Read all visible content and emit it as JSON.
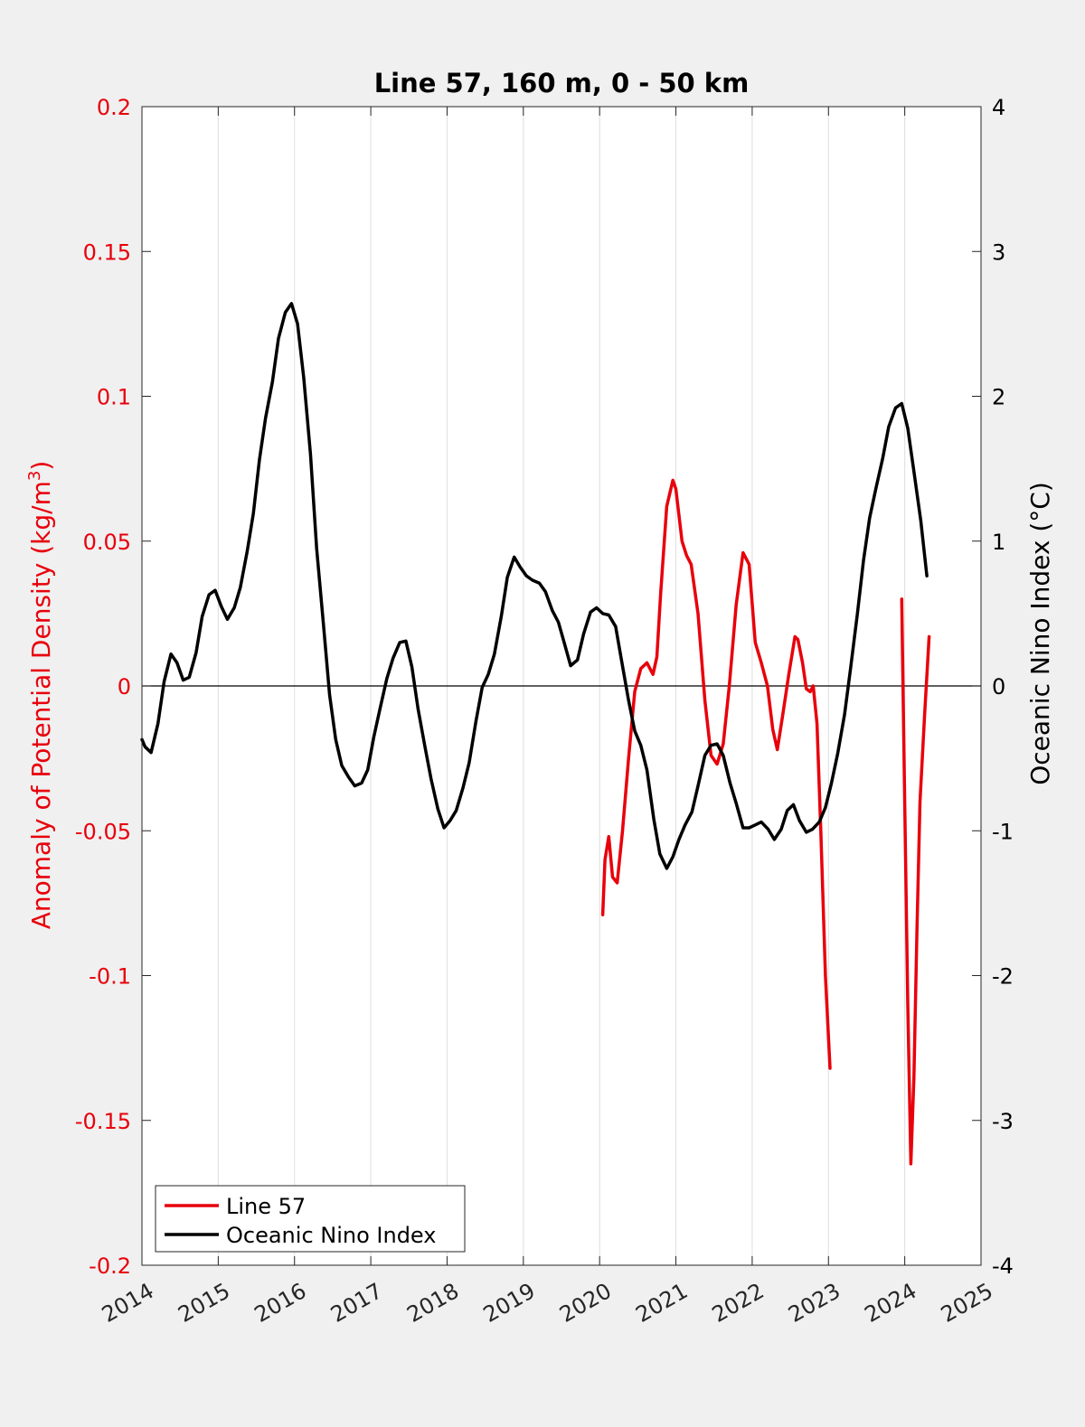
{
  "chart_data": {
    "type": "line",
    "title": "Line 57, 160 m, 0 - 50 km",
    "xlim": [
      2014,
      2025
    ],
    "x_ticks": [
      2014,
      2015,
      2016,
      2017,
      2018,
      2019,
      2020,
      2021,
      2022,
      2023,
      2024,
      2025
    ],
    "x_tick_labels": [
      "2014",
      "2015",
      "2016",
      "2017",
      "2018",
      "2019",
      "2020",
      "2021",
      "2022",
      "2023",
      "2024",
      "2025"
    ],
    "y_left": {
      "label_main": "Anomaly of Potential Density (kg/m",
      "label_sup": "3",
      "label_end": ")",
      "ylim": [
        -0.2,
        0.2
      ],
      "ticks": [
        -0.2,
        -0.15,
        -0.1,
        -0.05,
        0,
        0.05,
        0.1,
        0.15,
        0.2
      ],
      "tick_labels": [
        "-0.2",
        "-0.15",
        "-0.1",
        "-0.05",
        "0",
        "0.05",
        "0.1",
        "0.15",
        "0.2"
      ],
      "color": "#e8000b"
    },
    "y_right": {
      "label": "Oceanic Nino Index (°C)",
      "ylim": [
        -4,
        4
      ],
      "ticks": [
        -4,
        -3,
        -2,
        -1,
        0,
        1,
        2,
        3,
        4
      ],
      "tick_labels": [
        "-4",
        "-3",
        "-2",
        "-1",
        "0",
        "1",
        "2",
        "3",
        "4"
      ],
      "color": "#000000"
    },
    "grid": "vertical",
    "legend_position": "bottom-left",
    "series": [
      {
        "name": "Line 57",
        "axis": "left",
        "color": "#e8000b",
        "segments": [
          {
            "x": [
              2020.04,
              2020.07,
              2020.12,
              2020.17,
              2020.23,
              2020.3,
              2020.38,
              2020.46,
              2020.54,
              2020.62,
              2020.7,
              2020.75,
              2020.8,
              2020.88,
              2020.96,
              2021.0,
              2021.08,
              2021.14,
              2021.2,
              2021.29,
              2021.38,
              2021.46,
              2021.54,
              2021.62,
              2021.7,
              2021.79,
              2021.88,
              2021.96,
              2022.04,
              2022.12,
              2022.2,
              2022.27,
              2022.33,
              2022.4,
              2022.48,
              2022.56,
              2022.6,
              2022.66,
              2022.71,
              2022.76,
              2022.8,
              2022.85,
              2022.9,
              2022.96,
              2023.02
            ],
            "y": [
              -0.079,
              -0.06,
              -0.052,
              -0.066,
              -0.068,
              -0.05,
              -0.025,
              -0.002,
              0.006,
              0.008,
              0.004,
              0.01,
              0.032,
              0.062,
              0.071,
              0.068,
              0.05,
              0.045,
              0.042,
              0.025,
              -0.005,
              -0.024,
              -0.027,
              -0.02,
              0.0,
              0.028,
              0.046,
              0.042,
              0.015,
              0.008,
              0.0,
              -0.015,
              -0.022,
              -0.01,
              0.004,
              0.017,
              0.016,
              0.008,
              -0.001,
              -0.002,
              0.0,
              -0.013,
              -0.05,
              -0.1,
              -0.132
            ]
          },
          {
            "x": [
              2023.96,
              2024.0,
              2024.04,
              2024.08,
              2024.12,
              2024.16,
              2024.2,
              2024.26,
              2024.32
            ],
            "y": [
              0.03,
              -0.04,
              -0.11,
              -0.165,
              -0.135,
              -0.085,
              -0.04,
              -0.01,
              0.017
            ]
          }
        ]
      },
      {
        "name": "Oceanic Nino Index",
        "axis": "right",
        "color": "#000000",
        "x": [
          2014.0,
          2014.04,
          2014.12,
          2014.21,
          2014.29,
          2014.38,
          2014.46,
          2014.54,
          2014.62,
          2014.71,
          2014.79,
          2014.88,
          2014.96,
          2015.04,
          2015.12,
          2015.21,
          2015.29,
          2015.38,
          2015.46,
          2015.54,
          2015.62,
          2015.71,
          2015.79,
          2015.88,
          2015.96,
          2016.04,
          2016.12,
          2016.21,
          2016.29,
          2016.38,
          2016.46,
          2016.54,
          2016.62,
          2016.71,
          2016.79,
          2016.88,
          2016.96,
          2017.04,
          2017.12,
          2017.21,
          2017.29,
          2017.38,
          2017.46,
          2017.54,
          2017.62,
          2017.71,
          2017.79,
          2017.88,
          2017.96,
          2018.04,
          2018.12,
          2018.21,
          2018.29,
          2018.38,
          2018.46,
          2018.54,
          2018.62,
          2018.71,
          2018.79,
          2018.88,
          2018.96,
          2019.04,
          2019.12,
          2019.21,
          2019.29,
          2019.38,
          2019.46,
          2019.54,
          2019.62,
          2019.71,
          2019.79,
          2019.88,
          2019.96,
          2020.04,
          2020.12,
          2020.21,
          2020.29,
          2020.38,
          2020.46,
          2020.54,
          2020.62,
          2020.71,
          2020.79,
          2020.88,
          2020.96,
          2021.04,
          2021.12,
          2021.21,
          2021.29,
          2021.38,
          2021.46,
          2021.54,
          2021.62,
          2021.71,
          2021.79,
          2021.88,
          2021.96,
          2022.04,
          2022.12,
          2022.21,
          2022.29,
          2022.38,
          2022.46,
          2022.54,
          2022.62,
          2022.71,
          2022.79,
          2022.88,
          2022.96,
          2023.04,
          2023.12,
          2023.21,
          2023.29,
          2023.38,
          2023.46,
          2023.54,
          2023.62,
          2023.71,
          2023.79,
          2023.88,
          2023.96,
          2024.04,
          2024.12,
          2024.21,
          2024.29
        ],
        "y": [
          -0.37,
          -0.42,
          -0.46,
          -0.26,
          0.03,
          0.22,
          0.16,
          0.04,
          0.06,
          0.23,
          0.48,
          0.63,
          0.66,
          0.55,
          0.46,
          0.54,
          0.68,
          0.93,
          1.19,
          1.56,
          1.85,
          2.1,
          2.4,
          2.58,
          2.64,
          2.5,
          2.13,
          1.6,
          0.95,
          0.42,
          -0.06,
          -0.37,
          -0.55,
          -0.63,
          -0.69,
          -0.67,
          -0.58,
          -0.35,
          -0.16,
          0.05,
          0.19,
          0.3,
          0.31,
          0.13,
          -0.16,
          -0.42,
          -0.64,
          -0.85,
          -0.98,
          -0.93,
          -0.86,
          -0.7,
          -0.53,
          -0.24,
          -0.01,
          0.08,
          0.22,
          0.48,
          0.75,
          0.89,
          0.82,
          0.76,
          0.73,
          0.71,
          0.65,
          0.52,
          0.44,
          0.29,
          0.14,
          0.18,
          0.36,
          0.51,
          0.54,
          0.5,
          0.49,
          0.41,
          0.17,
          -0.1,
          -0.31,
          -0.41,
          -0.58,
          -0.92,
          -1.16,
          -1.26,
          -1.18,
          -1.06,
          -0.96,
          -0.87,
          -0.69,
          -0.48,
          -0.41,
          -0.4,
          -0.48,
          -0.67,
          -0.81,
          -0.98,
          -0.98,
          -0.96,
          -0.94,
          -0.99,
          -1.06,
          -0.99,
          -0.86,
          -0.82,
          -0.93,
          -1.01,
          -0.99,
          -0.94,
          -0.84,
          -0.67,
          -0.47,
          -0.2,
          0.12,
          0.5,
          0.87,
          1.16,
          1.36,
          1.57,
          1.79,
          1.92,
          1.95,
          1.78,
          1.48,
          1.14,
          0.76
        ]
      }
    ]
  }
}
